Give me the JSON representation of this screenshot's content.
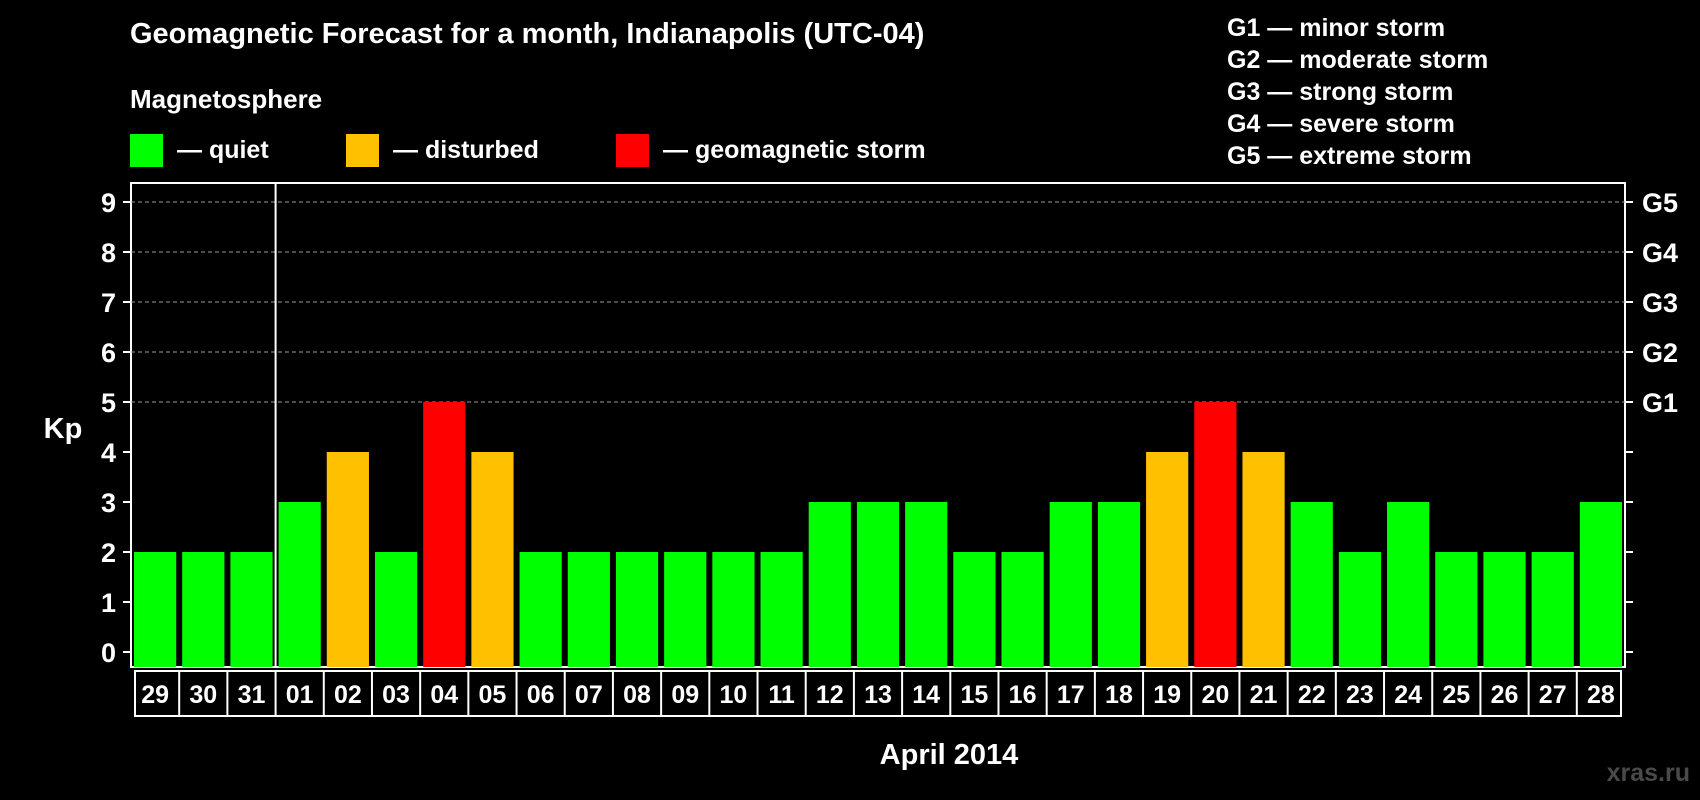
{
  "header": {
    "title": "Geomagnetic Forecast for a month, Indianapolis (UTC-04)",
    "subtitle": "Magnetosphere"
  },
  "legend": {
    "quiet": {
      "label": "— quiet",
      "color": "#00ff00"
    },
    "disturbed": {
      "label": "— disturbed",
      "color": "#ffc000"
    },
    "storm": {
      "label": "— geomagnetic storm",
      "color": "#ff0000"
    }
  },
  "storm_scale": [
    "G1 — minor storm",
    "G2 — moderate storm",
    "G3 — strong storm",
    "G4 — severe storm",
    "G5 — extreme storm"
  ],
  "watermark": "xras.ru",
  "chart_data": {
    "type": "bar",
    "title": "Geomagnetic Forecast for a month, Indianapolis (UTC-04)",
    "xlabel": "April 2014",
    "ylabel": "Kp",
    "ylim": [
      0,
      9
    ],
    "yticks": [
      0,
      1,
      2,
      3,
      4,
      5,
      6,
      7,
      8,
      9
    ],
    "right_axis_labels": [
      {
        "kp": 5,
        "label": "G1"
      },
      {
        "kp": 6,
        "label": "G2"
      },
      {
        "kp": 7,
        "label": "G3"
      },
      {
        "kp": 8,
        "label": "G4"
      },
      {
        "kp": 9,
        "label": "G5"
      }
    ],
    "grid": true,
    "month_boundary_after": "31",
    "categories": [
      "29",
      "30",
      "31",
      "01",
      "02",
      "03",
      "04",
      "05",
      "06",
      "07",
      "08",
      "09",
      "10",
      "11",
      "12",
      "13",
      "14",
      "15",
      "16",
      "17",
      "18",
      "19",
      "20",
      "21",
      "22",
      "23",
      "24",
      "25",
      "26",
      "27",
      "28"
    ],
    "values": [
      2,
      2,
      2,
      3,
      4,
      2,
      5,
      4,
      2,
      2,
      2,
      2,
      2,
      2,
      3,
      3,
      3,
      2,
      2,
      3,
      3,
      4,
      5,
      4,
      3,
      2,
      3,
      2,
      2,
      2,
      3
    ],
    "status": [
      "quiet",
      "quiet",
      "quiet",
      "quiet",
      "disturbed",
      "quiet",
      "storm",
      "disturbed",
      "quiet",
      "quiet",
      "quiet",
      "quiet",
      "quiet",
      "quiet",
      "quiet",
      "quiet",
      "quiet",
      "quiet",
      "quiet",
      "quiet",
      "quiet",
      "disturbed",
      "storm",
      "disturbed",
      "quiet",
      "quiet",
      "quiet",
      "quiet",
      "quiet",
      "quiet",
      "quiet"
    ]
  }
}
